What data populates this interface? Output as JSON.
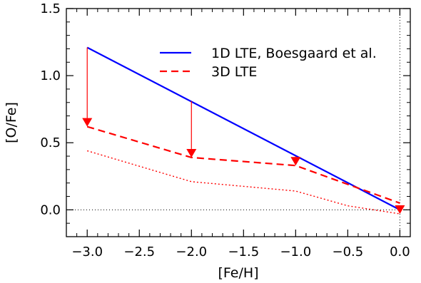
{
  "chart_data": {
    "type": "line",
    "xlabel": "[Fe/H]",
    "ylabel": "[O/Fe]",
    "xlim": [
      -3.2,
      0.1
    ],
    "ylim": [
      -0.2,
      1.5
    ],
    "xticks": [
      -3.0,
      -2.5,
      -2.0,
      -1.5,
      -1.0,
      -0.5,
      0.0
    ],
    "xtick_labels": [
      "−3.0",
      "−2.5",
      "−2.0",
      "−1.5",
      "−1.0",
      "−0.5",
      "0.0"
    ],
    "yticks": [
      0.0,
      0.5,
      1.0,
      1.5
    ],
    "ytick_labels": [
      "0.0",
      "0.5",
      "1.0",
      "1.5"
    ],
    "legend_position": "top-right",
    "series": [
      {
        "name": "1D LTE, Boesgaard et al.",
        "color": "#0000ff",
        "style": "solid",
        "x": [
          -3.0,
          0.0
        ],
        "y": [
          1.21,
          0.0
        ]
      },
      {
        "name": "3D LTE",
        "color": "#ff0000",
        "style": "dashed",
        "x": [
          -3.0,
          -2.0,
          -1.0,
          0.0
        ],
        "y": [
          0.62,
          0.39,
          0.33,
          0.05
        ]
      },
      {
        "color": "#ff0000",
        "style": "dotted",
        "x": [
          -3.0,
          -2.0,
          -1.0,
          -0.5,
          0.0
        ],
        "y": [
          0.44,
          0.21,
          0.14,
          0.03,
          -0.03
        ]
      }
    ],
    "arrows": [
      {
        "x": -3.0,
        "from": 1.21,
        "to": 0.62
      },
      {
        "x": -2.0,
        "from": 0.81,
        "to": 0.39
      },
      {
        "x": -1.0,
        "from": 0.4,
        "to": 0.33
      },
      {
        "x": 0.0,
        "from": 0.0,
        "to": -0.03
      }
    ],
    "reference_lines": {
      "horizontal": 0.0,
      "vertical": 0.0
    }
  }
}
